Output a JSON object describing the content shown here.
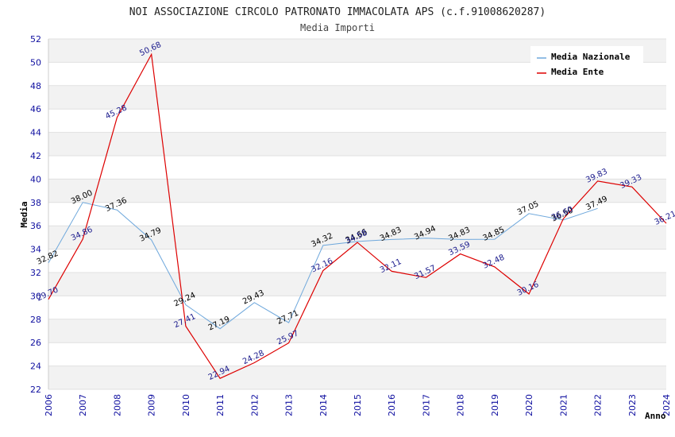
{
  "chart_data": {
    "type": "line",
    "title": "NOI ASSOCIAZIONE CIRCOLO PATRONATO IMMACOLATA APS (c.f.91008620287)",
    "subtitle": "Media Importi",
    "xlabel": "Anno",
    "ylabel": "Media",
    "ylim": [
      22,
      52
    ],
    "yticks": [
      "22",
      "24",
      "26",
      "28",
      "30",
      "32",
      "34",
      "36",
      "38",
      "40",
      "42",
      "44",
      "46",
      "48",
      "50",
      "52"
    ],
    "x": [
      "2006",
      "2007",
      "2008",
      "2009",
      "2010",
      "2011",
      "2012",
      "2013",
      "2014",
      "2015",
      "2016",
      "2017",
      "2018",
      "2019",
      "2020",
      "2021",
      "2022",
      "2023",
      "2024"
    ],
    "series": [
      {
        "name": "Media Nazionale",
        "color": "#6fa8dc",
        "values": [
          32.82,
          38.0,
          37.36,
          34.79,
          29.24,
          27.19,
          29.43,
          27.71,
          34.32,
          34.66,
          34.83,
          34.94,
          34.83,
          34.85,
          37.05,
          36.5,
          37.49,
          null,
          null
        ],
        "labels": [
          "32.82",
          "38.00",
          "37.36",
          "34.79",
          "29.24",
          "27.19",
          "29.43",
          "27.71",
          "34.32",
          "34.66",
          "34.83",
          "34.94",
          "34.83",
          "34.85",
          "37.05",
          "36.50",
          "37.49",
          "",
          ""
        ]
      },
      {
        "name": "Media Ente",
        "color": "#dd0000",
        "values": [
          29.7,
          34.86,
          45.28,
          50.68,
          27.41,
          22.94,
          24.28,
          25.97,
          32.16,
          34.58,
          32.11,
          31.57,
          33.59,
          32.48,
          30.16,
          36.6,
          39.83,
          39.33,
          36.21
        ],
        "labels": [
          "29.70",
          "34.86",
          "45.28",
          "50.68",
          "27.41",
          "22.94",
          "24.28",
          "25.97",
          "32.16",
          "34.58",
          "32.11",
          "31.57",
          "33.59",
          "32.48",
          "30.16",
          "36.60",
          "39.83",
          "39.33",
          "36.21"
        ]
      }
    ],
    "legend_position": "top-right",
    "grid": true
  }
}
